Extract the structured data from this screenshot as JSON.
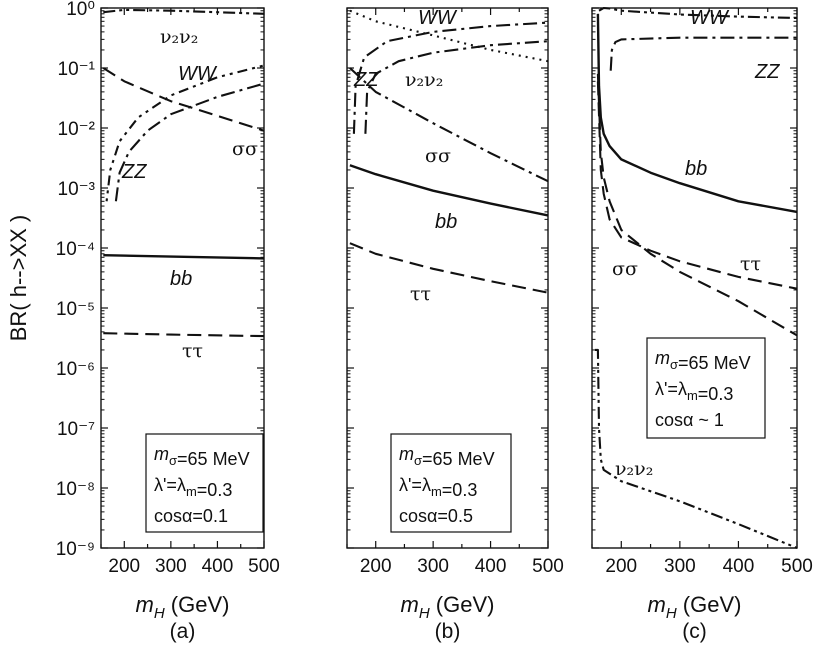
{
  "y_axis_title": "BR( h-->XX )",
  "y_ticks": [
    "10⁰",
    "10⁻¹",
    "10⁻²",
    "10⁻³",
    "10⁻⁴",
    "10⁻⁵",
    "10⁻⁶",
    "10⁻⁷",
    "10⁻⁸",
    "10⁻⁹"
  ],
  "chart_data": [
    {
      "type": "line",
      "panel": "(a)",
      "xlabel": "m_H (GeV)",
      "ylabel": "BR( h-->XX )",
      "xlim": [
        150,
        500
      ],
      "ylim": [
        1e-09,
        1
      ],
      "yscale": "log",
      "x_ticks": [
        200,
        300,
        400,
        500
      ],
      "params": [
        "m_σ=65 MeV",
        "λ'=λ_m=0.3",
        "cosα=0.1"
      ],
      "series": [
        {
          "name": "ν₂ν₂",
          "style": "dash-dot-dot",
          "x": [
            155,
            200,
            300,
            400,
            500
          ],
          "y": [
            0.85,
            0.93,
            0.9,
            0.85,
            0.8
          ]
        },
        {
          "name": "WW",
          "style": "dotted-dash",
          "x": [
            162,
            170,
            190,
            230,
            300,
            400,
            500
          ],
          "y": [
            0.0006,
            0.002,
            0.006,
            0.015,
            0.035,
            0.07,
            0.11
          ]
        },
        {
          "name": "ZZ",
          "style": "dash-dot",
          "x": [
            182,
            190,
            210,
            250,
            300,
            400,
            500
          ],
          "y": [
            0.0006,
            0.0018,
            0.004,
            0.009,
            0.017,
            0.033,
            0.055
          ]
        },
        {
          "name": "σσ",
          "style": "dashed",
          "x": [
            155,
            200,
            300,
            400,
            500
          ],
          "y": [
            0.1,
            0.06,
            0.028,
            0.016,
            0.009
          ]
        },
        {
          "name": "bb",
          "style": "solid",
          "x": [
            155,
            300,
            500
          ],
          "y": [
            7.6e-05,
            7.2e-05,
            6.7e-05
          ]
        },
        {
          "name": "ττ",
          "style": "dashed",
          "x": [
            155,
            300,
            500
          ],
          "y": [
            3.8e-06,
            3.6e-06,
            3.4e-06
          ]
        }
      ]
    },
    {
      "type": "line",
      "panel": "(b)",
      "xlabel": "m_H (GeV)",
      "xlim": [
        150,
        500
      ],
      "ylim": [
        1e-09,
        1
      ],
      "yscale": "log",
      "x_ticks": [
        200,
        300,
        400,
        500
      ],
      "params": [
        "m_σ=65 MeV",
        "λ'=λ_m=0.3",
        "cosα=0.5"
      ],
      "series": [
        {
          "name": "ν₂ν₂",
          "style": "dotted",
          "x": [
            155,
            200,
            300,
            400,
            500
          ],
          "y": [
            0.9,
            0.6,
            0.35,
            0.2,
            0.13
          ]
        },
        {
          "name": "WW",
          "style": "dash-dot",
          "x": [
            162,
            165,
            180,
            220,
            300,
            400,
            500
          ],
          "y": [
            0.008,
            0.05,
            0.15,
            0.28,
            0.4,
            0.5,
            0.57
          ]
        },
        {
          "name": "ZZ",
          "style": "dash-dot",
          "x": [
            182,
            185,
            200,
            240,
            300,
            400,
            500
          ],
          "y": [
            0.008,
            0.04,
            0.08,
            0.13,
            0.18,
            0.24,
            0.28
          ]
        },
        {
          "name": "σσ",
          "style": "dash-dot",
          "x": [
            155,
            200,
            300,
            400,
            500
          ],
          "y": [
            0.1,
            0.04,
            0.012,
            0.0038,
            0.0013
          ]
        },
        {
          "name": "bb",
          "style": "solid",
          "x": [
            155,
            200,
            300,
            400,
            500
          ],
          "y": [
            0.0024,
            0.0017,
            0.0009,
            0.00055,
            0.00035
          ]
        },
        {
          "name": "ττ",
          "style": "dashed",
          "x": [
            155,
            200,
            300,
            400,
            500
          ],
          "y": [
            0.00012,
            8e-05,
            4.5e-05,
            2.8e-05,
            1.8e-05
          ]
        }
      ]
    },
    {
      "type": "line",
      "panel": "(c)",
      "xlabel": "m_H (GeV)",
      "xlim": [
        150,
        500
      ],
      "ylim": [
        1e-09,
        1
      ],
      "yscale": "log",
      "x_ticks": [
        200,
        300,
        400,
        500
      ],
      "params": [
        "m_σ=65 MeV",
        "λ'=λ_m=0.3",
        "cosα ~ 1"
      ],
      "series": [
        {
          "name": "WW",
          "style": "dash-dot-dot",
          "x": [
            162,
            170,
            180,
            200,
            300,
            400,
            500
          ],
          "y": [
            0.9,
            1.0,
            0.98,
            0.9,
            0.78,
            0.72,
            0.68
          ]
        },
        {
          "name": "ZZ",
          "style": "dash-dot",
          "x": [
            182,
            184,
            190,
            200,
            300,
            400,
            500
          ],
          "y": [
            0.09,
            0.2,
            0.27,
            0.3,
            0.32,
            0.32,
            0.32
          ]
        },
        {
          "name": "bb",
          "style": "solid",
          "x": [
            160,
            162,
            165,
            170,
            180,
            200,
            250,
            300,
            400,
            500
          ],
          "y": [
            0.8,
            0.05,
            0.015,
            0.008,
            0.005,
            0.003,
            0.0018,
            0.0012,
            0.0006,
            0.0004
          ]
        },
        {
          "name": "σσ",
          "style": "dashed",
          "x": [
            160,
            165,
            170,
            180,
            200,
            250,
            300,
            400,
            500
          ],
          "y": [
            0.08,
            0.004,
            0.0015,
            0.0006,
            0.0002,
            8e-05,
            4e-05,
            1.3e-05,
            3.5e-06
          ]
        },
        {
          "name": "ττ",
          "style": "dashed",
          "x": [
            160,
            165,
            170,
            180,
            200,
            250,
            300,
            400,
            500
          ],
          "y": [
            0.06,
            0.002,
            0.0008,
            0.0003,
            0.00015,
            9e-05,
            6e-05,
            3.3e-05,
            2.1e-05
          ]
        },
        {
          "name": "ν₂ν₂",
          "style": "dash-dot-dot",
          "x": [
            155,
            160,
            162,
            165,
            170,
            200,
            300,
            400,
            500
          ],
          "y": [
            2e-06,
            2e-06,
            1e-07,
            3e-08,
            2e-08,
            1.3e-08,
            6e-09,
            2.5e-09,
            1e-09
          ]
        }
      ]
    }
  ]
}
